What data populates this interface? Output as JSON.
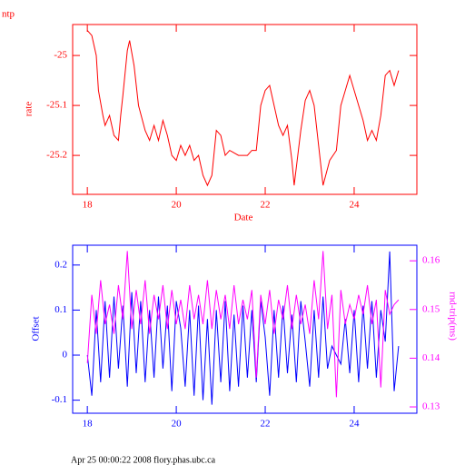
{
  "chart_data": [
    {
      "type": "line",
      "title": "ntp",
      "xlabel": "Date",
      "ylabel": "rate",
      "x": [
        18.0,
        18.1,
        18.2,
        18.25,
        18.35,
        18.4,
        18.5,
        18.6,
        18.7,
        18.75,
        18.8,
        18.9,
        18.95,
        19.05,
        19.15,
        19.3,
        19.4,
        19.5,
        19.6,
        19.7,
        19.8,
        19.9,
        20.0,
        20.1,
        20.2,
        20.3,
        20.4,
        20.5,
        20.6,
        20.7,
        20.8,
        20.9,
        21.0,
        21.1,
        21.2,
        21.4,
        21.6,
        21.7,
        21.8,
        21.9,
        22.0,
        22.1,
        22.2,
        22.3,
        22.4,
        22.5,
        22.6,
        22.65,
        22.8,
        22.9,
        23.0,
        23.1,
        23.2,
        23.3,
        23.45,
        23.6,
        23.7,
        23.8,
        23.9,
        24.0,
        24.1,
        24.2,
        24.3,
        24.4,
        24.5,
        24.6,
        24.7,
        24.8,
        24.9,
        25.0
      ],
      "series": [
        {
          "color": "#ff0000",
          "values": [
            -24.95,
            -24.96,
            -25.0,
            -25.07,
            -25.12,
            -25.14,
            -25.12,
            -25.16,
            -25.17,
            -25.12,
            -25.08,
            -24.99,
            -24.97,
            -25.02,
            -25.1,
            -25.15,
            -25.17,
            -25.14,
            -25.17,
            -25.13,
            -25.16,
            -25.2,
            -25.21,
            -25.18,
            -25.2,
            -25.18,
            -25.21,
            -25.2,
            -25.24,
            -25.26,
            -25.24,
            -25.15,
            -25.16,
            -25.2,
            -25.19,
            -25.2,
            -25.2,
            -25.19,
            -25.19,
            -25.1,
            -25.07,
            -25.06,
            -25.1,
            -25.14,
            -25.16,
            -25.14,
            -25.21,
            -25.26,
            -25.15,
            -25.09,
            -25.07,
            -25.1,
            -25.18,
            -25.26,
            -25.21,
            -25.19,
            -25.1,
            -25.07,
            -25.04,
            -25.07,
            -25.1,
            -25.13,
            -25.17,
            -25.15,
            -25.17,
            -25.12,
            -25.04,
            -25.03,
            -25.06,
            -25.03
          ]
        }
      ],
      "xlim": [
        17.67,
        25.41
      ],
      "xticks": [
        18,
        20,
        22,
        24
      ],
      "ylim": [
        -25.278,
        -24.938
      ],
      "yticks": [
        -25,
        -25.1,
        -25.2
      ]
    },
    {
      "type": "line",
      "xlabel": "",
      "ylabel": "Offset",
      "y2label": "rnd-trip(ms)",
      "x": [
        18.0,
        18.1,
        18.2,
        18.3,
        18.4,
        18.5,
        18.6,
        18.7,
        18.8,
        18.9,
        19.0,
        19.1,
        19.2,
        19.3,
        19.4,
        19.5,
        19.6,
        19.7,
        19.8,
        19.9,
        20.0,
        20.1,
        20.2,
        20.3,
        20.4,
        20.5,
        20.6,
        20.7,
        20.8,
        20.9,
        21.0,
        21.1,
        21.2,
        21.3,
        21.4,
        21.5,
        21.6,
        21.7,
        21.8,
        21.9,
        22.0,
        22.1,
        22.2,
        22.3,
        22.4,
        22.5,
        22.6,
        22.7,
        22.8,
        22.9,
        23.0,
        23.1,
        23.2,
        23.3,
        23.4,
        23.5,
        23.6,
        23.7,
        23.8,
        23.9,
        24.0,
        24.1,
        24.2,
        24.3,
        24.4,
        24.5,
        24.6,
        24.7,
        24.8,
        24.9,
        25.0
      ],
      "series": [
        {
          "color": "#0000ff",
          "values": [
            0.0,
            -0.09,
            0.1,
            -0.06,
            0.12,
            -0.05,
            0.13,
            -0.03,
            0.11,
            -0.07,
            0.14,
            -0.04,
            0.12,
            -0.06,
            0.1,
            -0.05,
            0.13,
            -0.03,
            0.11,
            -0.08,
            0.12,
            0.06,
            -0.07,
            0.1,
            -0.09,
            0.11,
            -0.1,
            0.08,
            -0.11,
            0.1,
            -0.06,
            0.12,
            -0.08,
            0.09,
            -0.07,
            0.11,
            -0.05,
            0.1,
            -0.06,
            0.12,
            0.04,
            -0.09,
            0.1,
            -0.05,
            0.11,
            -0.04,
            0.09,
            -0.06,
            0.12,
            0.03,
            -0.07,
            0.1,
            -0.05,
            0.13,
            -0.03,
            0.02,
            0.0,
            -0.02,
            0.08,
            -0.04,
            0.1,
            -0.06,
            0.11,
            -0.03,
            0.12,
            -0.05,
            0.1,
            0.03,
            0.23,
            -0.08,
            0.02
          ]
        },
        {
          "color": "#ff00ff",
          "axis": "y2",
          "values": [
            0.139,
            0.153,
            0.145,
            0.156,
            0.147,
            0.151,
            0.145,
            0.155,
            0.148,
            0.162,
            0.146,
            0.154,
            0.147,
            0.156,
            0.145,
            0.153,
            0.148,
            0.155,
            0.146,
            0.154,
            0.147,
            0.152,
            0.146,
            0.155,
            0.148,
            0.153,
            0.147,
            0.156,
            0.146,
            0.154,
            0.148,
            0.153,
            0.146,
            0.155,
            0.147,
            0.152,
            0.148,
            0.154,
            0.136,
            0.153,
            0.147,
            0.154,
            0.145,
            0.152,
            0.148,
            0.155,
            0.146,
            0.153,
            0.147,
            0.151,
            0.145,
            0.156,
            0.148,
            0.162,
            0.146,
            0.153,
            0.132,
            0.154,
            0.147,
            0.151,
            0.148,
            0.153,
            0.149,
            0.155,
            0.147,
            0.152,
            0.134,
            0.154,
            0.149,
            0.151,
            0.152
          ]
        }
      ],
      "xlim": [
        17.67,
        25.41
      ],
      "xticks": [
        18,
        20,
        22,
        24
      ],
      "ylim": [
        -0.129,
        0.244
      ],
      "yticks": [
        0.2,
        0.1,
        0,
        -0.1
      ],
      "y2lim": [
        0.1287,
        0.1632
      ],
      "y2ticks": [
        0.16,
        0.15,
        0.14,
        0.13
      ]
    }
  ],
  "footer": "Apr 25 00:00:22 2008 flory.phas.ubc.ca"
}
